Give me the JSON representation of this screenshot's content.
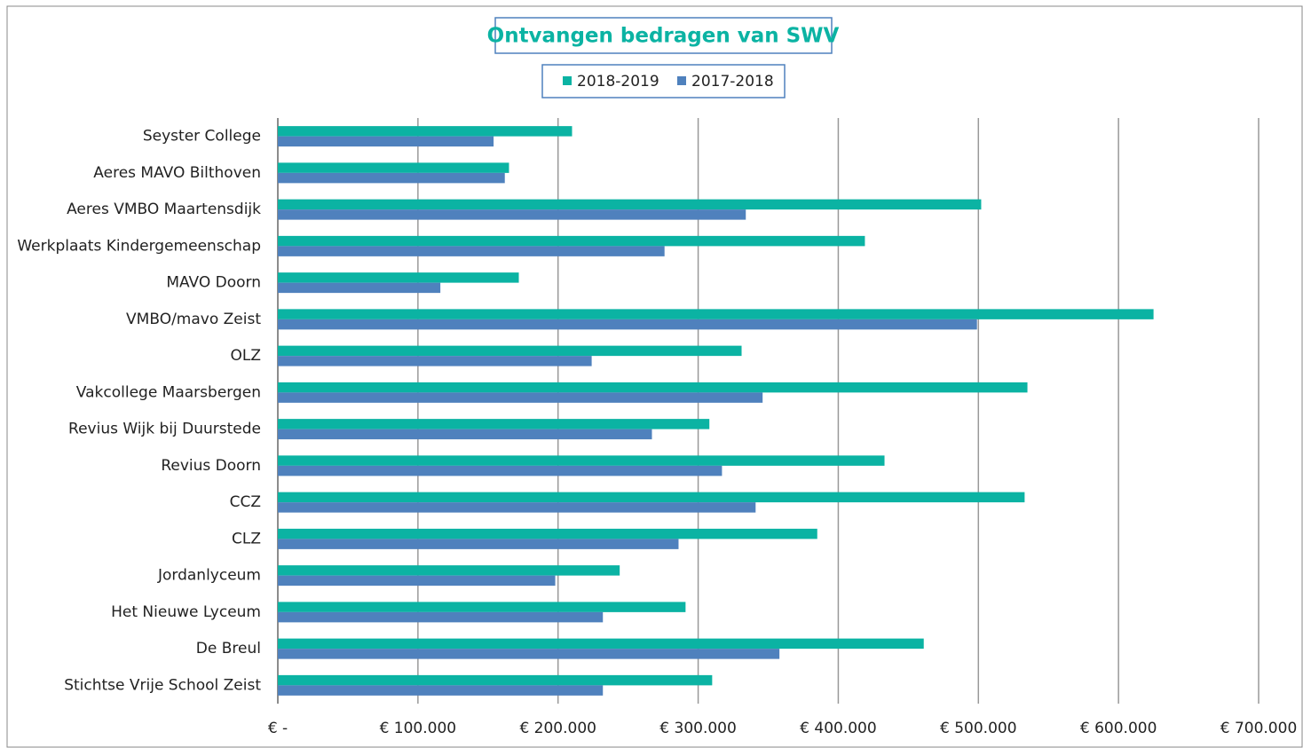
{
  "chart_data": {
    "type": "hbar",
    "title": "Ontvangen bedragen van SWV",
    "categories": [
      "Seyster College",
      "Aeres MAVO Bilthoven",
      "Aeres VMBO Maartensdijk",
      "Werkplaats Kindergemeenschap",
      "MAVO Doorn",
      "VMBO/mavo Zeist",
      "OLZ",
      "Vakcollege Maarsbergen",
      "Revius Wijk bij Duurstede",
      "Revius Doorn",
      "CCZ",
      "CLZ",
      "Jordanlyceum",
      "Het Nieuwe Lyceum",
      "De Breul",
      "Stichtse Vrije School Zeist"
    ],
    "series": [
      {
        "name": "2018-2019",
        "color": "#0bb3a3",
        "values": [
          210000,
          165000,
          502000,
          419000,
          172000,
          625000,
          331000,
          535000,
          308000,
          433000,
          533000,
          385000,
          244000,
          291000,
          461000,
          310000
        ]
      },
      {
        "name": "2017-2018",
        "color": "#4f81bd",
        "values": [
          154000,
          162000,
          334000,
          276000,
          116000,
          499000,
          224000,
          346000,
          267000,
          317000,
          341000,
          286000,
          198000,
          232000,
          358000,
          232000
        ]
      }
    ],
    "xlim": [
      0,
      700000
    ],
    "xticks": [
      {
        "value": 0,
        "label": "€ -"
      },
      {
        "value": 100000,
        "label": "€ 100.000"
      },
      {
        "value": 200000,
        "label": "€ 200.000"
      },
      {
        "value": 300000,
        "label": "€ 300.000"
      },
      {
        "value": 400000,
        "label": "€ 400.000"
      },
      {
        "value": 500000,
        "label": "€ 500.000"
      },
      {
        "value": 600000,
        "label": "€ 600.000"
      },
      {
        "value": 700000,
        "label": "€ 700.000"
      }
    ],
    "grid": true,
    "legend": "top"
  }
}
